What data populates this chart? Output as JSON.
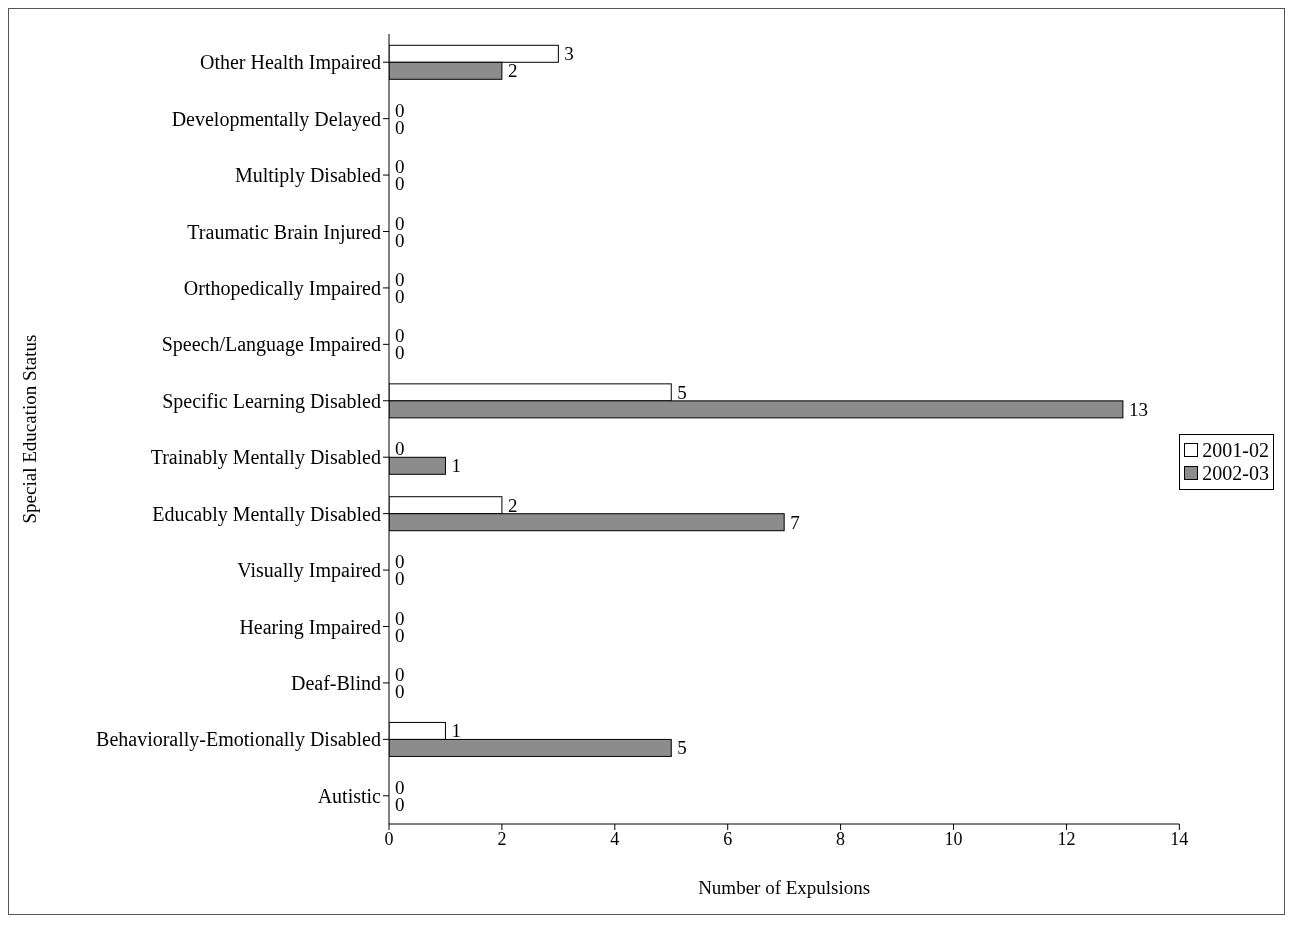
{
  "chart_data": {
    "type": "bar",
    "orientation": "horizontal",
    "xlabel": "Number of Expulsions",
    "ylabel": "Special Education Status",
    "categories": [
      "Other Health Impaired",
      "Developmentally Delayed",
      "Multiply Disabled",
      "Traumatic Brain Injured",
      "Orthopedically Impaired",
      "Speech/Language Impaired",
      "Specific Learning Disabled",
      "Trainably Mentally Disabled",
      "Educably Mentally Disabled",
      "Visually Impaired",
      "Hearing Impaired",
      "Deaf-Blind",
      "Behaviorally-Emotionally Disabled",
      "Autistic"
    ],
    "series": [
      {
        "name": "2001-02",
        "color": "#ffffff",
        "values": [
          3,
          0,
          0,
          0,
          0,
          0,
          5,
          0,
          2,
          0,
          0,
          0,
          1,
          0
        ]
      },
      {
        "name": "2002-03",
        "color": "#8c8c8c",
        "values": [
          2,
          0,
          0,
          0,
          0,
          0,
          13,
          1,
          7,
          0,
          0,
          0,
          5,
          0
        ]
      }
    ],
    "xlim": [
      0,
      14
    ],
    "xticks": [
      0,
      2,
      4,
      6,
      8,
      10,
      12,
      14
    ],
    "data_labels": true,
    "grid": false,
    "legend": "right"
  }
}
